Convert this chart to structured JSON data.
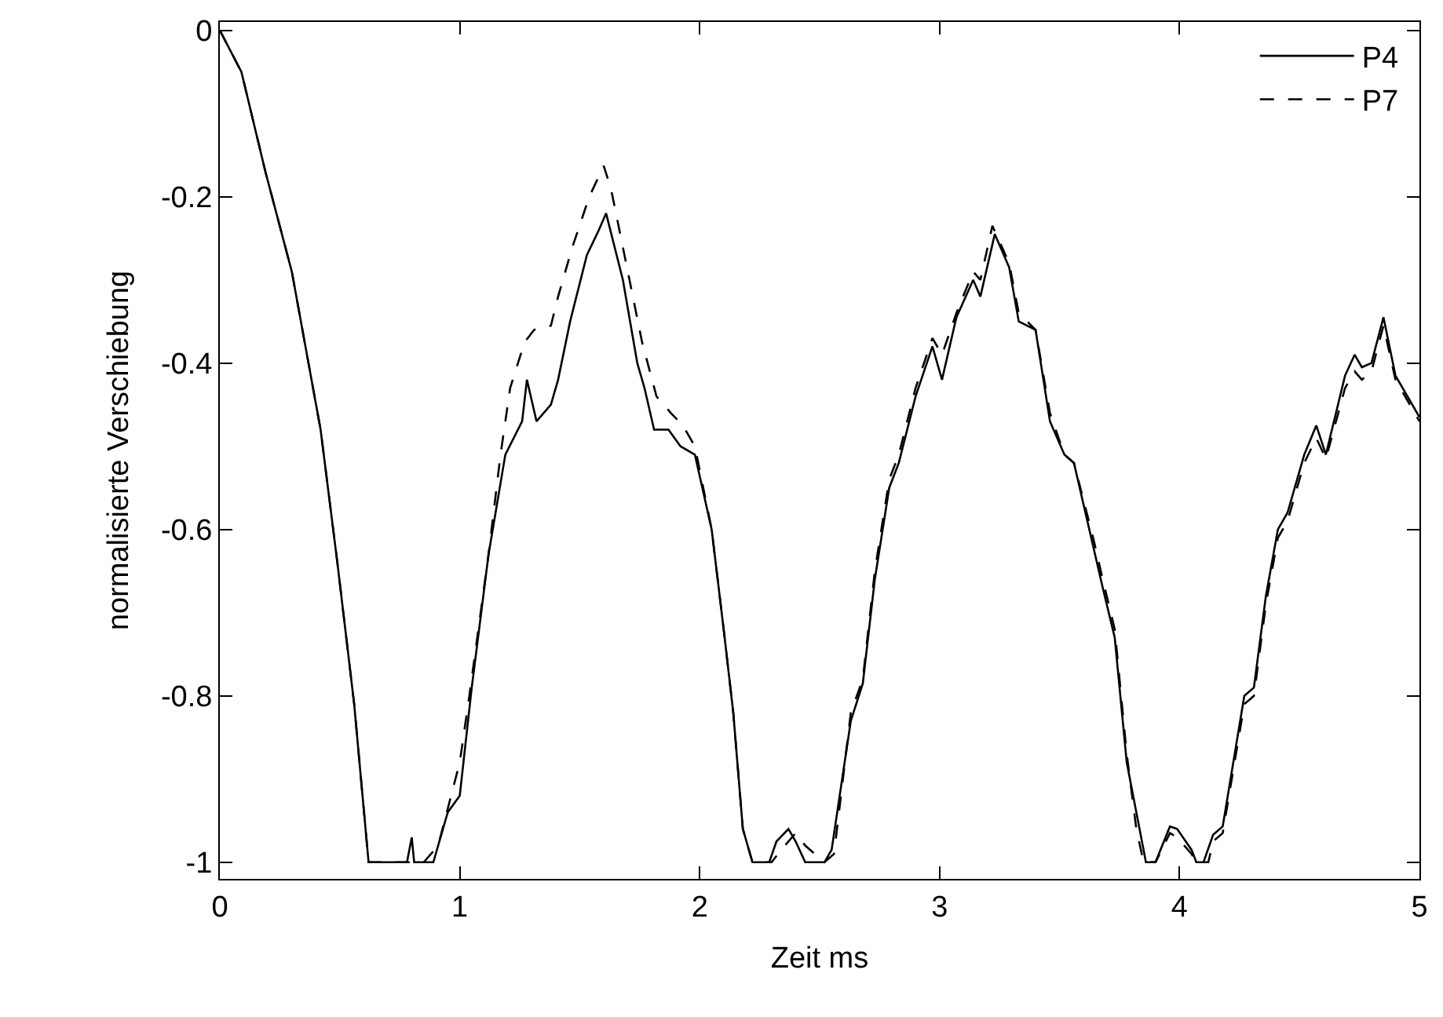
{
  "chart_data": {
    "type": "line",
    "xlabel": "Zeit ms",
    "ylabel": "normalisierte Verschiebung",
    "xlim": [
      0,
      5
    ],
    "ylim": [
      -1.02,
      0.01
    ],
    "xticks": [
      0,
      1,
      2,
      3,
      4,
      5
    ],
    "yticks": [
      0,
      -0.2,
      -0.4,
      -0.6,
      -0.8,
      -1
    ],
    "legend": "top right",
    "marker": "none",
    "series": [
      {
        "name": "P4",
        "color": "#000000",
        "line_style": "solid",
        "x": [
          0,
          0.09,
          0.19,
          0.3,
          0.42,
          0.49,
          0.56,
          0.62,
          0.78,
          0.8,
          0.81,
          0.89,
          0.95,
          1.0,
          1.05,
          1.12,
          1.19,
          1.26,
          1.28,
          1.32,
          1.38,
          1.41,
          1.46,
          1.53,
          1.58,
          1.61,
          1.68,
          1.74,
          1.77,
          1.81,
          1.87,
          1.92,
          1.98,
          2.05,
          2.1,
          2.14,
          2.18,
          2.22,
          2.29,
          2.32,
          2.37,
          2.4,
          2.44,
          2.52,
          2.55,
          2.63,
          2.68,
          2.73,
          2.79,
          2.83,
          2.9,
          2.97,
          3.01,
          3.07,
          3.14,
          3.17,
          3.23,
          3.29,
          3.33,
          3.4,
          3.46,
          3.52,
          3.56,
          3.64,
          3.68,
          3.73,
          3.78,
          3.82,
          3.86,
          3.9,
          3.96,
          3.99,
          4.05,
          4.07,
          4.1,
          4.14,
          4.18,
          4.27,
          4.31,
          4.36,
          4.41,
          4.45,
          4.52,
          4.57,
          4.61,
          4.69,
          4.73,
          4.76,
          4.8,
          4.85,
          4.9,
          4.97,
          5.0
        ],
        "values": [
          0,
          -0.05,
          -0.17,
          -0.29,
          -0.48,
          -0.64,
          -0.81,
          -1,
          -1,
          -0.97,
          -1,
          -1,
          -0.94,
          -0.92,
          -0.79,
          -0.63,
          -0.51,
          -0.47,
          -0.42,
          -0.47,
          -0.45,
          -0.42,
          -0.35,
          -0.27,
          -0.24,
          -0.22,
          -0.3,
          -0.4,
          -0.43,
          -0.48,
          -0.48,
          -0.5,
          -0.51,
          -0.6,
          -0.72,
          -0.82,
          -0.96,
          -1,
          -1,
          -0.975,
          -0.96,
          -0.975,
          -1,
          -1,
          -0.985,
          -0.83,
          -0.785,
          -0.66,
          -0.55,
          -0.52,
          -0.44,
          -0.38,
          -0.42,
          -0.345,
          -0.3,
          -0.32,
          -0.245,
          -0.285,
          -0.35,
          -0.36,
          -0.47,
          -0.51,
          -0.52,
          -0.62,
          -0.67,
          -0.73,
          -0.88,
          -0.94,
          -1,
          -1,
          -0.957,
          -0.96,
          -0.985,
          -1,
          -1,
          -0.967,
          -0.957,
          -0.8,
          -0.79,
          -0.68,
          -0.6,
          -0.58,
          -0.51,
          -0.475,
          -0.51,
          -0.415,
          -0.39,
          -0.405,
          -0.4,
          -0.345,
          -0.415,
          -0.45,
          -0.465
        ]
      },
      {
        "name": "P7",
        "color": "#000000",
        "line_style": "dashed",
        "x": [
          0,
          0.09,
          0.19,
          0.3,
          0.42,
          0.49,
          0.56,
          0.62,
          0.85,
          0.91,
          1.0,
          1.04,
          1.12,
          1.17,
          1.21,
          1.27,
          1.31,
          1.38,
          1.41,
          1.47,
          1.54,
          1.6,
          1.63,
          1.69,
          1.76,
          1.82,
          1.88,
          1.93,
          1.98,
          2.05,
          2.1,
          2.14,
          2.18,
          2.22,
          2.3,
          2.34,
          2.4,
          2.44,
          2.52,
          2.56,
          2.63,
          2.68,
          2.73,
          2.79,
          2.83,
          2.9,
          2.97,
          3.01,
          3.07,
          3.14,
          3.17,
          3.22,
          3.29,
          3.33,
          3.4,
          3.46,
          3.52,
          3.56,
          3.64,
          3.68,
          3.73,
          3.78,
          3.82,
          3.85,
          3.9,
          3.96,
          3.99,
          4.05,
          4.07,
          4.12,
          4.14,
          4.18,
          4.27,
          4.31,
          4.36,
          4.41,
          4.45,
          4.52,
          4.57,
          4.61,
          4.69,
          4.73,
          4.76,
          4.8,
          4.85,
          4.9,
          4.97,
          5.0
        ],
        "values": [
          0,
          -0.05,
          -0.17,
          -0.29,
          -0.48,
          -0.64,
          -0.81,
          -1,
          -1,
          -0.98,
          -0.88,
          -0.8,
          -0.63,
          -0.51,
          -0.43,
          -0.375,
          -0.36,
          -0.355,
          -0.32,
          -0.26,
          -0.2,
          -0.163,
          -0.19,
          -0.275,
          -0.375,
          -0.44,
          -0.46,
          -0.475,
          -0.5,
          -0.6,
          -0.72,
          -0.82,
          -0.96,
          -1,
          -1,
          -0.985,
          -0.965,
          -0.98,
          -1,
          -0.99,
          -0.82,
          -0.78,
          -0.65,
          -0.54,
          -0.51,
          -0.43,
          -0.37,
          -0.39,
          -0.34,
          -0.29,
          -0.3,
          -0.235,
          -0.28,
          -0.34,
          -0.36,
          -0.46,
          -0.51,
          -0.52,
          -0.61,
          -0.66,
          -0.72,
          -0.87,
          -0.96,
          -1,
          -1,
          -0.965,
          -0.97,
          -0.99,
          -1,
          -1,
          -0.975,
          -0.965,
          -0.81,
          -0.8,
          -0.69,
          -0.61,
          -0.59,
          -0.52,
          -0.49,
          -0.515,
          -0.43,
          -0.41,
          -0.42,
          -0.41,
          -0.355,
          -0.42,
          -0.455,
          -0.47
        ]
      }
    ]
  }
}
